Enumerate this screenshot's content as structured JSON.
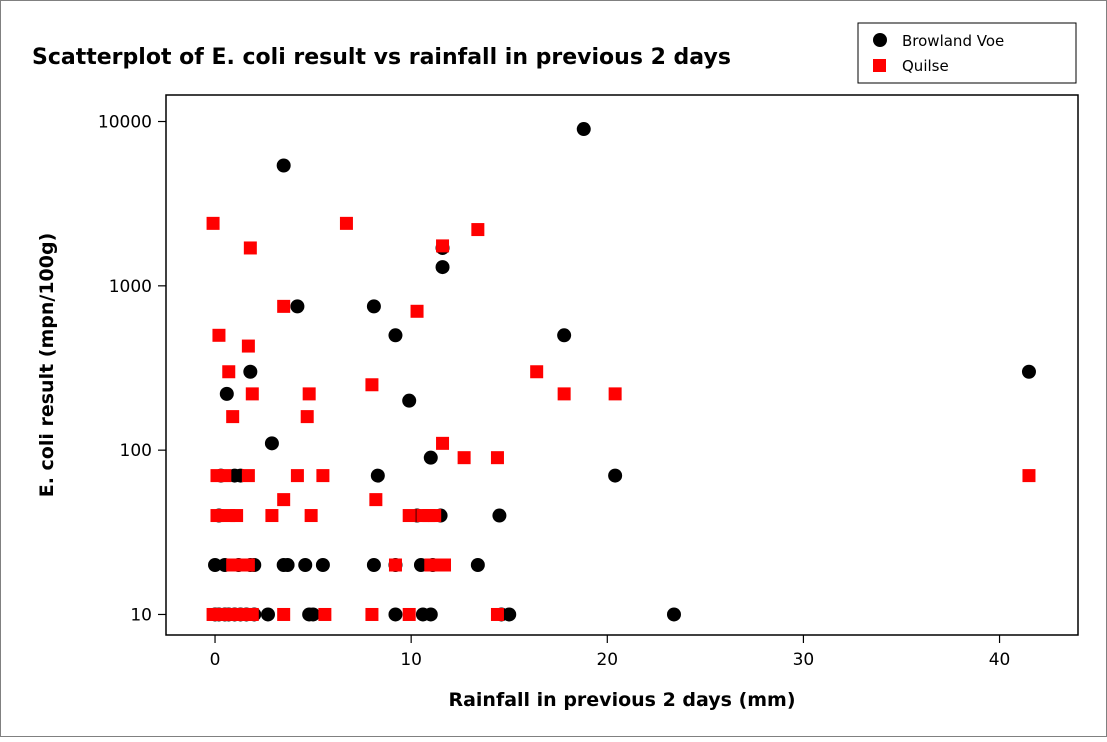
{
  "chart_data": {
    "type": "scatter",
    "title": "Scatterplot of E. coli result vs rainfall in previous 2 days",
    "xlabel": "Rainfall in previous 2 days (mm)",
    "ylabel": "E. coli result (mpn/100g)",
    "xlim": [
      -2.5,
      44
    ],
    "ylim": [
      7.5,
      14500
    ],
    "yscale": "log",
    "xticks": [
      0,
      10,
      20,
      30,
      40
    ],
    "yticks": [
      10,
      100,
      1000,
      10000
    ],
    "xtick_labels": [
      "0",
      "10",
      "20",
      "30",
      "40"
    ],
    "ytick_labels": [
      "10",
      "100",
      "1000",
      "10000"
    ],
    "grid": false,
    "legend_position": "top-right",
    "series": [
      {
        "name": "Browland Voe",
        "marker": "circle",
        "color": "#000000",
        "points": [
          [
            0.0,
            10
          ],
          [
            0.2,
            10
          ],
          [
            0.5,
            10
          ],
          [
            0.7,
            10
          ],
          [
            1.0,
            10
          ],
          [
            1.3,
            10
          ],
          [
            1.6,
            10
          ],
          [
            2.0,
            10
          ],
          [
            2.7,
            10
          ],
          [
            4.8,
            10
          ],
          [
            5.0,
            10
          ],
          [
            9.2,
            10
          ],
          [
            10.6,
            10
          ],
          [
            11.0,
            10
          ],
          [
            14.6,
            10
          ],
          [
            15.0,
            10
          ],
          [
            23.4,
            10
          ],
          [
            0.0,
            20
          ],
          [
            0.5,
            20
          ],
          [
            1.2,
            20
          ],
          [
            1.8,
            20
          ],
          [
            2.0,
            20
          ],
          [
            3.5,
            20
          ],
          [
            3.7,
            20
          ],
          [
            4.6,
            20
          ],
          [
            5.5,
            20
          ],
          [
            8.1,
            20
          ],
          [
            9.2,
            20
          ],
          [
            10.5,
            20
          ],
          [
            11.1,
            20
          ],
          [
            13.4,
            20
          ],
          [
            0.2,
            40
          ],
          [
            10.3,
            40
          ],
          [
            11.5,
            40
          ],
          [
            14.5,
            40
          ],
          [
            0.3,
            70
          ],
          [
            1.0,
            70
          ],
          [
            1.3,
            70
          ],
          [
            8.3,
            70
          ],
          [
            20.4,
            70
          ],
          [
            11.0,
            90
          ],
          [
            2.9,
            110
          ],
          [
            9.9,
            200
          ],
          [
            0.6,
            220
          ],
          [
            1.8,
            300
          ],
          [
            41.5,
            300
          ],
          [
            9.2,
            500
          ],
          [
            17.8,
            500
          ],
          [
            4.2,
            750
          ],
          [
            8.1,
            750
          ],
          [
            11.6,
            1300
          ],
          [
            11.6,
            1700
          ],
          [
            3.5,
            5400
          ],
          [
            18.8,
            9000
          ]
        ]
      },
      {
        "name": "Quilse",
        "marker": "square",
        "color": "#ff0000",
        "points": [
          [
            -0.1,
            10
          ],
          [
            0.3,
            10
          ],
          [
            0.8,
            10
          ],
          [
            1.2,
            10
          ],
          [
            1.5,
            10
          ],
          [
            1.9,
            10
          ],
          [
            3.5,
            10
          ],
          [
            5.6,
            10
          ],
          [
            8.0,
            10
          ],
          [
            9.9,
            10
          ],
          [
            14.4,
            10
          ],
          [
            0.9,
            20
          ],
          [
            1.4,
            20
          ],
          [
            1.7,
            20
          ],
          [
            9.2,
            20
          ],
          [
            11.0,
            20
          ],
          [
            11.4,
            20
          ],
          [
            11.7,
            20
          ],
          [
            0.1,
            40
          ],
          [
            0.7,
            40
          ],
          [
            1.1,
            40
          ],
          [
            2.9,
            40
          ],
          [
            4.9,
            40
          ],
          [
            9.9,
            40
          ],
          [
            10.6,
            40
          ],
          [
            10.9,
            40
          ],
          [
            11.2,
            40
          ],
          [
            3.5,
            50
          ],
          [
            8.2,
            50
          ],
          [
            0.1,
            70
          ],
          [
            0.5,
            70
          ],
          [
            1.7,
            70
          ],
          [
            4.2,
            70
          ],
          [
            5.5,
            70
          ],
          [
            41.5,
            70
          ],
          [
            12.7,
            90
          ],
          [
            14.4,
            90
          ],
          [
            11.6,
            110
          ],
          [
            0.9,
            160
          ],
          [
            4.7,
            160
          ],
          [
            1.9,
            220
          ],
          [
            4.8,
            220
          ],
          [
            17.8,
            220
          ],
          [
            20.4,
            220
          ],
          [
            8.0,
            250
          ],
          [
            0.7,
            300
          ],
          [
            16.4,
            300
          ],
          [
            1.7,
            430
          ],
          [
            0.2,
            500
          ],
          [
            10.3,
            700
          ],
          [
            3.5,
            750
          ],
          [
            1.8,
            1700
          ],
          [
            11.6,
            1750
          ],
          [
            13.4,
            2200
          ],
          [
            -0.1,
            2400
          ],
          [
            6.7,
            2400
          ]
        ]
      }
    ]
  }
}
